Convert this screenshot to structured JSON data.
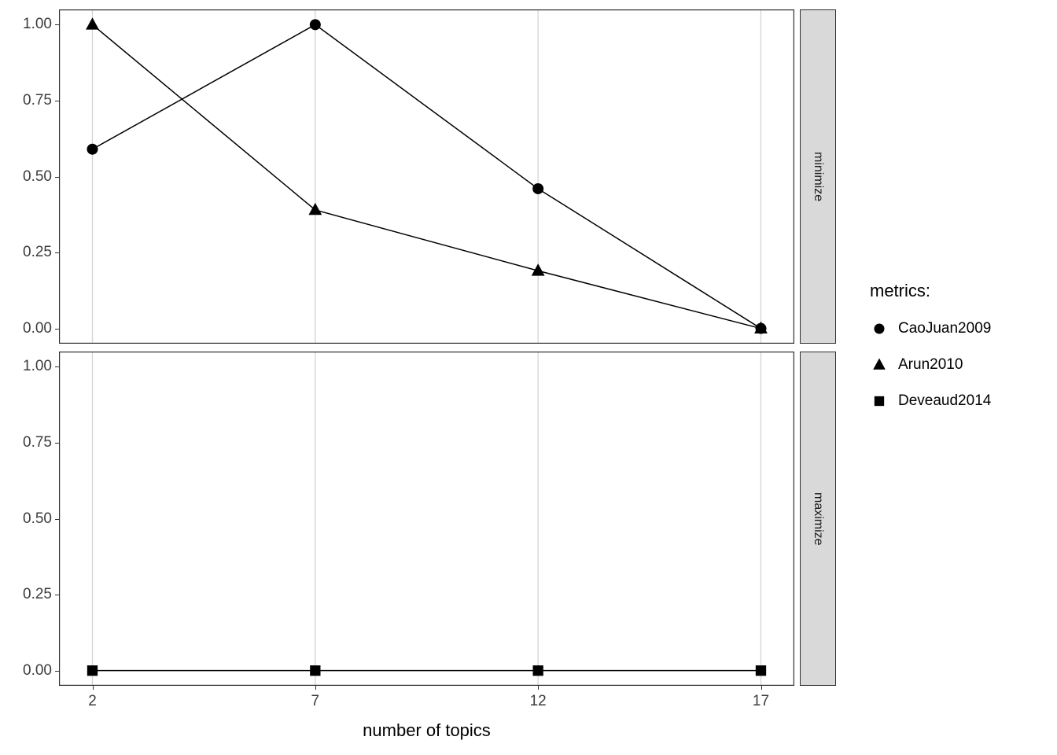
{
  "chart_data": {
    "type": "line",
    "title": "",
    "xlabel": "number of topics",
    "ylabel": "",
    "x": [
      2,
      7,
      12,
      17
    ],
    "xlim": [
      1.25,
      17.75
    ],
    "ylim": [
      -0.05,
      1.05
    ],
    "x_ticks": [
      {
        "v": 2,
        "label": "2"
      },
      {
        "v": 7,
        "label": "7"
      },
      {
        "v": 12,
        "label": "12"
      },
      {
        "v": 17,
        "label": "17"
      }
    ],
    "y_ticks": [
      {
        "v": 0.0,
        "label": "0.00"
      },
      {
        "v": 0.25,
        "label": "0.25"
      },
      {
        "v": 0.5,
        "label": "0.50"
      },
      {
        "v": 0.75,
        "label": "0.75"
      },
      {
        "v": 1.0,
        "label": "1.00"
      }
    ],
    "grid": "vertical-only",
    "facets": [
      {
        "label": "minimize",
        "series": [
          {
            "name": "CaoJuan2009",
            "marker": "circle",
            "values": [
              0.59,
              1.0,
              0.46,
              0.0
            ]
          },
          {
            "name": "Arun2010",
            "marker": "triangle",
            "values": [
              1.0,
              0.39,
              0.19,
              0.0
            ]
          }
        ]
      },
      {
        "label": "maximize",
        "series": [
          {
            "name": "Deveaud2014",
            "marker": "square",
            "values": [
              0.0,
              0.0,
              0.0,
              0.0
            ]
          }
        ]
      }
    ],
    "legend": {
      "title": "metrics:",
      "position": "right",
      "entries": [
        {
          "label": "CaoJuan2009",
          "marker": "circle"
        },
        {
          "label": "Arun2010",
          "marker": "triangle"
        },
        {
          "label": "Deveaud2014",
          "marker": "square"
        }
      ]
    },
    "colors": {
      "series": "#000000",
      "gridline": "#d4d4d4",
      "strip_bg": "#d9d9d9",
      "panel_border": "#2f2f2f",
      "background": "#ffffff"
    }
  }
}
